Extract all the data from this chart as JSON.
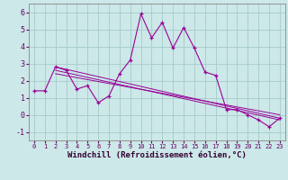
{
  "x": [
    0,
    1,
    2,
    3,
    4,
    5,
    6,
    7,
    8,
    9,
    10,
    11,
    12,
    13,
    14,
    15,
    16,
    17,
    18,
    19,
    20,
    21,
    22,
    23
  ],
  "y_main": [
    1.4,
    1.4,
    2.8,
    2.6,
    1.5,
    1.7,
    0.7,
    1.1,
    2.4,
    3.2,
    5.9,
    4.5,
    5.4,
    3.9,
    5.1,
    3.9,
    2.5,
    2.3,
    0.3,
    0.3,
    0.0,
    -0.3,
    -0.7,
    -0.2
  ],
  "trend1_x": [
    2,
    23
  ],
  "trend1_y": [
    2.8,
    -0.2
  ],
  "trend2_x": [
    2,
    23
  ],
  "trend2_y": [
    2.6,
    -0.3
  ],
  "trend3_x": [
    2,
    23
  ],
  "trend3_y": [
    2.4,
    0.0
  ],
  "color": "#990099",
  "bg_color": "#cce8e8",
  "grid_color": "#aacece",
  "xlim": [
    -0.5,
    23.5
  ],
  "ylim": [
    -1.5,
    6.5
  ],
  "yticks": [
    -1,
    0,
    1,
    2,
    3,
    4,
    5,
    6
  ],
  "xticks": [
    0,
    1,
    2,
    3,
    4,
    5,
    6,
    7,
    8,
    9,
    10,
    11,
    12,
    13,
    14,
    15,
    16,
    17,
    18,
    19,
    20,
    21,
    22,
    23
  ],
  "xlabel": "Windchill (Refroidissement éolien,°C)",
  "xlabel_fontsize": 6.5,
  "tick_fontsize_x": 5.0,
  "tick_fontsize_y": 6.0
}
